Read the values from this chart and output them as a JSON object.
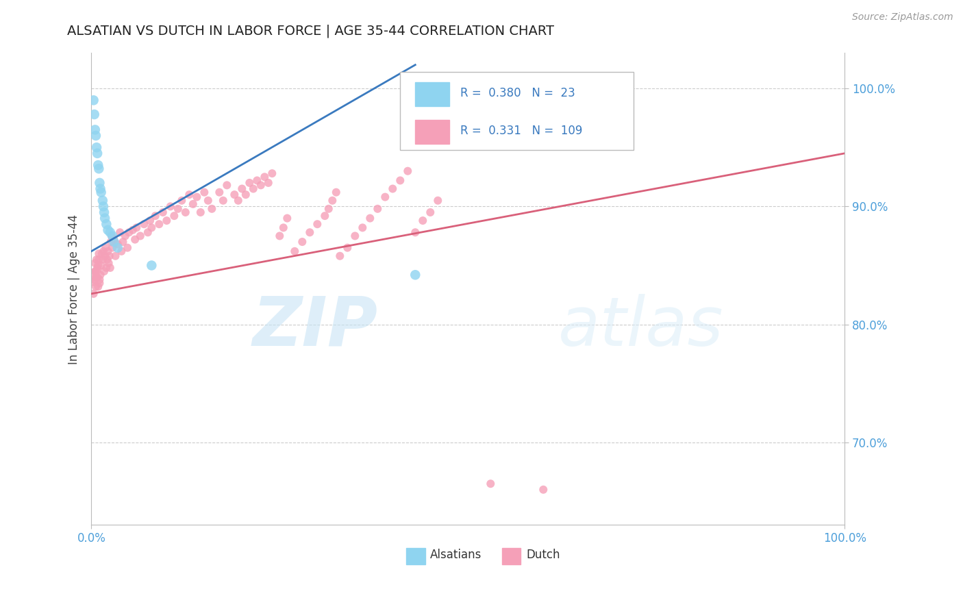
{
  "title": "ALSATIAN VS DUTCH IN LABOR FORCE | AGE 35-44 CORRELATION CHART",
  "source_text": "Source: ZipAtlas.com",
  "ylabel": "In Labor Force | Age 35-44",
  "alsatian_R": 0.38,
  "alsatian_N": 23,
  "dutch_R": 0.331,
  "dutch_N": 109,
  "alsatian_color": "#8fd4f0",
  "dutch_color": "#f5a0b8",
  "alsatian_line_color": "#3a7abf",
  "dutch_line_color": "#d9607a",
  "background_color": "#ffffff",
  "watermark_zip": "ZIP",
  "watermark_atlas": "atlas",
  "xlim": [
    0.0,
    1.0
  ],
  "ylim": [
    0.63,
    1.03
  ],
  "y_ticks": [
    0.7,
    0.8,
    0.9,
    1.0
  ],
  "y_tick_labels": [
    "70.0%",
    "80.0%",
    "90.0%",
    "100.0%"
  ],
  "x_ticks": [
    0.0,
    1.0
  ],
  "x_tick_labels": [
    "0.0%",
    "100.0%"
  ],
  "alsatian_line_x": [
    0.0,
    0.43
  ],
  "alsatian_line_y": [
    0.862,
    1.02
  ],
  "dutch_line_x": [
    0.0,
    1.0
  ],
  "dutch_line_y": [
    0.826,
    0.945
  ],
  "alsatian_scatter_x": [
    0.003,
    0.004,
    0.005,
    0.006,
    0.007,
    0.008,
    0.009,
    0.01,
    0.011,
    0.012,
    0.013,
    0.015,
    0.016,
    0.017,
    0.018,
    0.02,
    0.022,
    0.025,
    0.028,
    0.03,
    0.035,
    0.08,
    0.43
  ],
  "alsatian_scatter_y": [
    0.99,
    0.978,
    0.965,
    0.96,
    0.95,
    0.945,
    0.935,
    0.932,
    0.92,
    0.915,
    0.912,
    0.905,
    0.9,
    0.895,
    0.89,
    0.885,
    0.88,
    0.878,
    0.875,
    0.87,
    0.865,
    0.85,
    0.842
  ],
  "dutch_scatter_x": [
    0.003,
    0.004,
    0.005,
    0.006,
    0.007,
    0.008,
    0.009,
    0.01,
    0.011,
    0.012,
    0.013,
    0.014,
    0.015,
    0.016,
    0.017,
    0.018,
    0.019,
    0.02,
    0.021,
    0.022,
    0.023,
    0.024,
    0.025,
    0.026,
    0.027,
    0.028,
    0.03,
    0.032,
    0.035,
    0.038,
    0.04,
    0.042,
    0.045,
    0.048,
    0.05,
    0.055,
    0.058,
    0.06,
    0.065,
    0.07,
    0.075,
    0.078,
    0.08,
    0.085,
    0.09,
    0.095,
    0.1,
    0.105,
    0.11,
    0.115,
    0.12,
    0.125,
    0.13,
    0.135,
    0.14,
    0.145,
    0.15,
    0.155,
    0.16,
    0.17,
    0.175,
    0.18,
    0.19,
    0.195,
    0.2,
    0.205,
    0.21,
    0.215,
    0.22,
    0.225,
    0.23,
    0.235,
    0.24,
    0.25,
    0.255,
    0.26,
    0.27,
    0.28,
    0.29,
    0.3,
    0.31,
    0.315,
    0.32,
    0.325,
    0.33,
    0.34,
    0.35,
    0.36,
    0.37,
    0.38,
    0.39,
    0.4,
    0.41,
    0.42,
    0.43,
    0.44,
    0.45,
    0.46,
    0.53,
    0.6,
    0.003,
    0.004,
    0.005,
    0.006,
    0.007,
    0.008,
    0.009,
    0.01,
    0.011
  ],
  "dutch_scatter_y": [
    0.836,
    0.844,
    0.852,
    0.84,
    0.845,
    0.848,
    0.832,
    0.855,
    0.838,
    0.842,
    0.85,
    0.86,
    0.855,
    0.862,
    0.845,
    0.858,
    0.865,
    0.848,
    0.855,
    0.862,
    0.852,
    0.858,
    0.848,
    0.87,
    0.875,
    0.865,
    0.872,
    0.858,
    0.868,
    0.878,
    0.862,
    0.87,
    0.875,
    0.865,
    0.878,
    0.88,
    0.872,
    0.882,
    0.875,
    0.885,
    0.878,
    0.888,
    0.882,
    0.892,
    0.885,
    0.895,
    0.888,
    0.9,
    0.892,
    0.898,
    0.905,
    0.895,
    0.91,
    0.902,
    0.908,
    0.895,
    0.912,
    0.905,
    0.898,
    0.912,
    0.905,
    0.918,
    0.91,
    0.905,
    0.915,
    0.91,
    0.92,
    0.915,
    0.922,
    0.918,
    0.925,
    0.92,
    0.928,
    0.875,
    0.882,
    0.89,
    0.862,
    0.87,
    0.878,
    0.885,
    0.892,
    0.898,
    0.905,
    0.912,
    0.858,
    0.865,
    0.875,
    0.882,
    0.89,
    0.898,
    0.908,
    0.915,
    0.922,
    0.93,
    0.878,
    0.888,
    0.895,
    0.905,
    0.665,
    0.66,
    0.826,
    0.838,
    0.845,
    0.832,
    0.855,
    0.84,
    0.85,
    0.86,
    0.835
  ],
  "marker_size_alsatian": 110,
  "marker_size_dutch": 75
}
